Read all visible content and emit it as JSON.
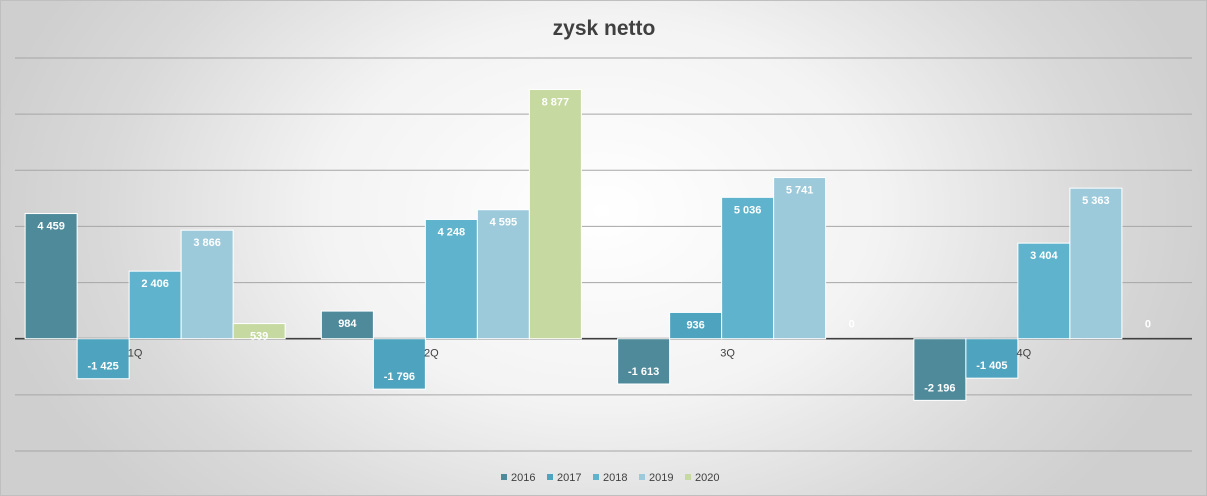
{
  "chart_data": {
    "type": "bar",
    "title": "zysk netto",
    "categories": [
      "1Q",
      "2Q",
      "3Q",
      "4Q"
    ],
    "series": [
      {
        "name": "2016",
        "color": "#4f8a9b",
        "values": [
          4459,
          984,
          -1613,
          -2196
        ],
        "labels": [
          "4 459",
          "984",
          "-1 613",
          "-2 196"
        ]
      },
      {
        "name": "2017",
        "color": "#4ea3bf",
        "values": [
          -1425,
          -1796,
          936,
          -1405
        ],
        "labels": [
          "-1 425",
          "-1 796",
          "936",
          "-1 405"
        ]
      },
      {
        "name": "2018",
        "color": "#5fb3cc",
        "values": [
          2406,
          4248,
          5036,
          3404
        ],
        "labels": [
          "2 406",
          "4 248",
          "5 036",
          "3 404"
        ]
      },
      {
        "name": "2019",
        "color": "#9ccadb",
        "values": [
          3866,
          4595,
          5741,
          5363
        ],
        "labels": [
          "3 866",
          "4 595",
          "5 741",
          "5 363"
        ]
      },
      {
        "name": "2020",
        "color": "#c5d9a0",
        "values": [
          539,
          8877,
          0,
          0
        ],
        "labels": [
          "539",
          "8 877",
          "0",
          "0"
        ]
      }
    ],
    "ylim": [
      -4000,
      10000
    ],
    "grid": true,
    "legend": "bottom"
  }
}
